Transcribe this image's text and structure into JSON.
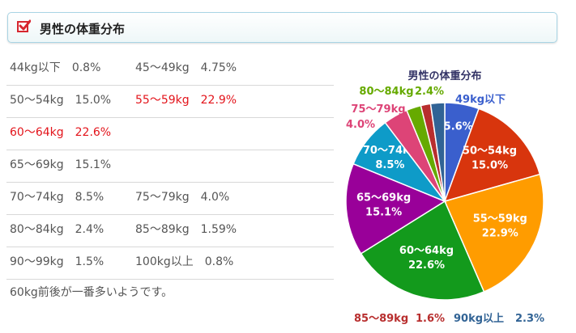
{
  "header": {
    "title": "男性の体重分布"
  },
  "list": {
    "rows": [
      {
        "items": [
          {
            "range": "44kg以下",
            "pct": "0.8%"
          },
          {
            "range": "45～49kg",
            "pct": "4.75%"
          }
        ]
      },
      {
        "items": [
          {
            "range": "50～54kg",
            "pct": "15.0%"
          },
          {
            "range": "55～59kg",
            "pct": "22.9%",
            "highlight": true
          }
        ]
      },
      {
        "items": [
          {
            "range": "60～64kg",
            "pct": "22.6%",
            "highlight": true
          }
        ]
      },
      {
        "items": [
          {
            "range": "65～69kg",
            "pct": "15.1%"
          }
        ]
      },
      {
        "items": [
          {
            "range": "70～74kg",
            "pct": "8.5%"
          },
          {
            "range": "75～79kg",
            "pct": "4.0%"
          }
        ]
      },
      {
        "items": [
          {
            "range": "80～84kg",
            "pct": "2.4%"
          },
          {
            "range": "85～89kg",
            "pct": "1.59%"
          }
        ]
      },
      {
        "items": [
          {
            "range": "90～99kg",
            "pct": "1.5%"
          },
          {
            "range": "100kg以上",
            "pct": "0.8%"
          }
        ]
      }
    ],
    "note": "60kg前後が一番多いようです。"
  },
  "chart_data": {
    "type": "pie",
    "title": "男性の体重分布",
    "slices": [
      {
        "label": "49kg以下",
        "value": 5.6,
        "value_label": "5.6%",
        "color": "#3a5fcd",
        "label_style": "outside"
      },
      {
        "label": "50～54kg",
        "value": 15.0,
        "value_label": "15.0%",
        "color": "#d8350d",
        "label_style": "inside"
      },
      {
        "label": "55～59kg",
        "value": 22.9,
        "value_label": "22.9%",
        "color": "#ff9c00",
        "label_style": "inside"
      },
      {
        "label": "60～64kg",
        "value": 22.6,
        "value_label": "22.6%",
        "color": "#139a1c",
        "label_style": "inside"
      },
      {
        "label": "65～69kg",
        "value": 15.1,
        "value_label": "15.1%",
        "color": "#990099",
        "label_style": "inside"
      },
      {
        "label": "70～74kg",
        "value": 8.5,
        "value_label": "8.5%",
        "color": "#0e9bc8",
        "label_style": "inside"
      },
      {
        "label": "75～79kg",
        "value": 4.0,
        "value_label": "4.0%",
        "color": "#dd4477",
        "label_style": "outside"
      },
      {
        "label": "80～84kg",
        "value": 2.4,
        "value_label": "2.4%",
        "color": "#66aa00",
        "label_style": "outside"
      },
      {
        "label": "85～89kg",
        "value": 1.6,
        "value_label": "1.6%",
        "color": "#b82e2e",
        "label_style": "outside"
      },
      {
        "label": "90kg以上",
        "value": 2.3,
        "value_label": "2.3%",
        "color": "#316395",
        "label_style": "outside"
      }
    ]
  }
}
